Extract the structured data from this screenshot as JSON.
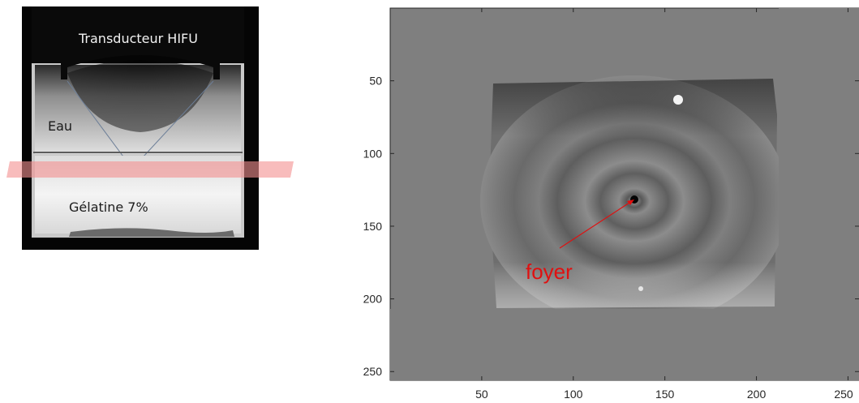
{
  "left_image": {
    "labels": {
      "transducer": "Transducteur HIFU",
      "water": "Eau",
      "gel": "Gélatine 7%"
    },
    "colors": {
      "background": "#050505",
      "slice_band": "#f48f8f"
    }
  },
  "plot": {
    "x_ticks": [
      "50",
      "100",
      "150",
      "200",
      "250"
    ],
    "y_ticks": [
      "50",
      "100",
      "150",
      "200",
      "250"
    ],
    "x_range": [
      0,
      256
    ],
    "y_range": [
      256,
      0
    ],
    "annotation": {
      "text": "foyer",
      "color": "#e01010",
      "target": [
        133,
        133
      ]
    },
    "colors": {
      "axes_background": "#7f7f7f"
    }
  }
}
